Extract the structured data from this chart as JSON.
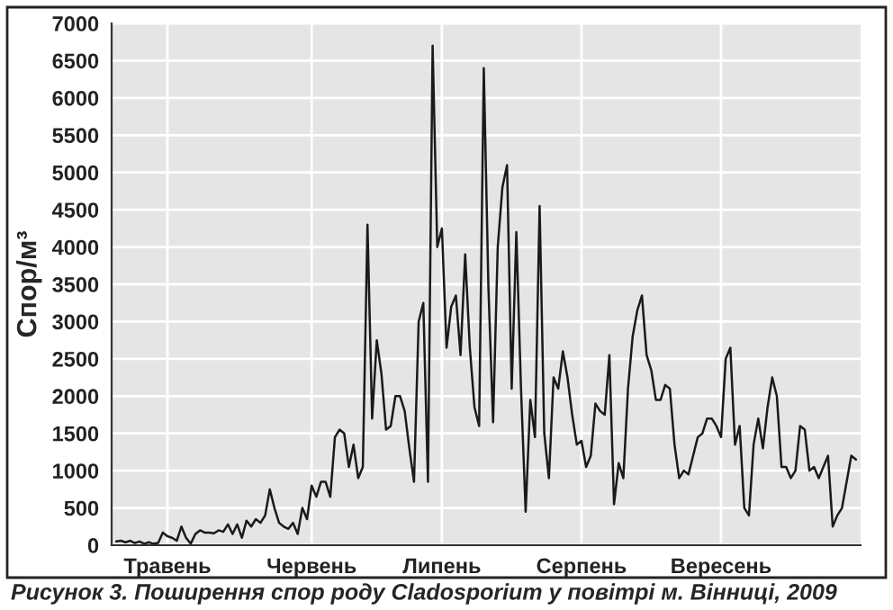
{
  "chart_data": {
    "type": "line",
    "ylabel": "Спор/м³",
    "annotations": [
      "Рисунок 3. Поширення спор роду Cladosporium у повітрі м. Вінниці, 2009"
    ],
    "categories": [
      null,
      null,
      null,
      null,
      null,
      null,
      null,
      null,
      null,
      null,
      null,
      "Травень",
      null,
      null,
      null,
      null,
      null,
      null,
      null,
      null,
      null,
      null,
      null,
      null,
      null,
      null,
      null,
      null,
      null,
      null,
      null,
      null,
      null,
      null,
      null,
      null,
      null,
      null,
      null,
      null,
      null,
      null,
      "Червень",
      null,
      null,
      null,
      null,
      null,
      null,
      null,
      null,
      null,
      null,
      null,
      null,
      null,
      null,
      null,
      null,
      null,
      null,
      null,
      null,
      null,
      null,
      null,
      null,
      null,
      null,
      null,
      "Липень",
      null,
      null,
      null,
      null,
      null,
      null,
      null,
      null,
      null,
      null,
      null,
      null,
      null,
      null,
      null,
      null,
      null,
      null,
      null,
      null,
      null,
      null,
      null,
      null,
      null,
      null,
      null,
      null,
      null,
      "Серпень",
      null,
      null,
      null,
      null,
      null,
      null,
      null,
      null,
      null,
      null,
      null,
      null,
      null,
      null,
      null,
      null,
      null,
      null,
      null,
      null,
      null,
      null,
      null,
      null,
      null,
      null,
      null,
      null,
      null,
      "Вересень",
      null,
      null,
      null,
      null,
      null,
      null,
      null,
      null,
      null,
      null,
      null,
      null,
      null,
      null,
      null,
      null,
      null,
      null,
      null,
      null,
      null,
      null,
      null,
      null,
      null,
      null,
      null,
      null,
      null
    ],
    "series": [
      {
        "color": "#1a1a1a",
        "values": [
          50,
          60,
          40,
          60,
          30,
          50,
          20,
          40,
          20,
          30,
          170,
          120,
          100,
          60,
          250,
          100,
          20,
          150,
          200,
          170,
          170,
          160,
          200,
          180,
          280,
          150,
          280,
          100,
          330,
          250,
          350,
          300,
          400,
          750,
          500,
          300,
          250,
          220,
          300,
          150,
          500,
          350,
          800,
          650,
          850,
          850,
          650,
          1450,
          1550,
          1500,
          1050,
          1350,
          900,
          1050,
          4300,
          1700,
          2750,
          2300,
          1550,
          1600,
          2000,
          2000,
          1800,
          1300,
          850,
          3000,
          3250,
          850,
          6700,
          4000,
          4250,
          2650,
          3200,
          3350,
          2550,
          3900,
          2650,
          1850,
          1600,
          6400,
          3450,
          1650,
          4000,
          4800,
          5100,
          2100,
          4200,
          2100,
          450,
          1950,
          1450,
          4550,
          1500,
          900,
          2250,
          2100,
          2600,
          2250,
          1750,
          1350,
          1400,
          1050,
          1200,
          1900,
          1800,
          1750,
          2550,
          550,
          1100,
          900,
          2100,
          2800,
          3150,
          3350,
          2550,
          2350,
          1950,
          1950,
          2150,
          2100,
          1350,
          900,
          1000,
          950,
          1200,
          1450,
          1500,
          1700,
          1700,
          1600,
          1450,
          2500,
          2650,
          1350,
          1600,
          500,
          400,
          1350,
          1700,
          1300,
          1850,
          2250,
          2000,
          1050,
          1050,
          900,
          1000,
          1600,
          1550,
          1000,
          1050,
          900,
          1050,
          1200,
          250,
          400,
          500,
          850,
          1200,
          1150
        ]
      }
    ],
    "ylim": [
      0,
      7000
    ],
    "yticks": [
      0,
      500,
      1000,
      1500,
      2000,
      2500,
      3000,
      3500,
      4000,
      4500,
      5000,
      5500,
      6000,
      6500,
      7000
    ],
    "grid": true,
    "marker": "none",
    "line_style": "solid"
  }
}
